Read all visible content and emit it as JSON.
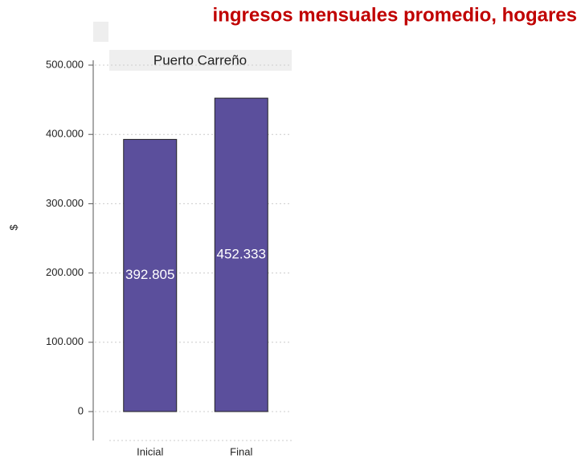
{
  "chart_data": {
    "type": "bar",
    "title": "ingresos mensuales promedio, hogares",
    "facet": "Puerto Carreño",
    "y_label": "$",
    "categories": [
      "Inicial",
      "Final"
    ],
    "values": [
      392805,
      452333
    ],
    "value_labels": [
      "392.805",
      "452.333"
    ],
    "color": "#5b4f9c",
    "ylim": [
      0,
      500000
    ],
    "yticks": [
      0,
      {
        "value": 100000,
        "label": "100.000"
      },
      {
        "value": 200000,
        "label": "200.000"
      },
      {
        "value": 300000,
        "label": "300.000"
      },
      {
        "value": 400000,
        "label": "400.000"
      },
      {
        "value": 500000,
        "label": "500.000"
      }
    ],
    "grid": true
  }
}
